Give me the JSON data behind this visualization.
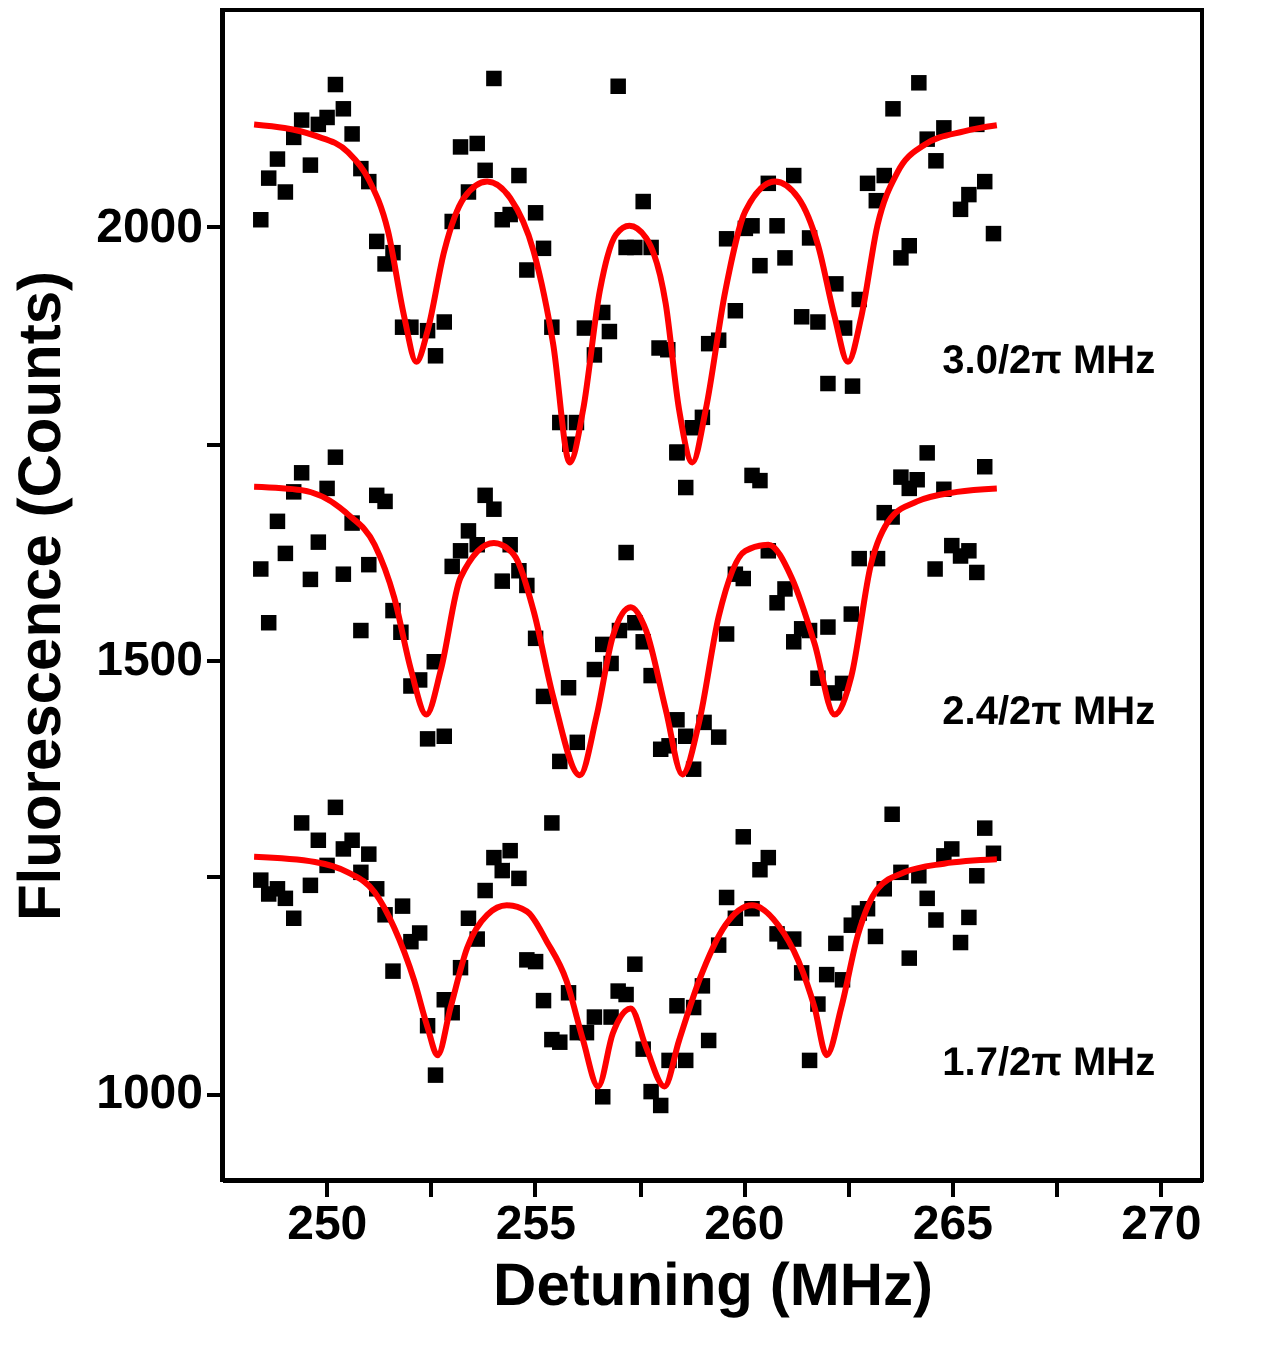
{
  "chart_data": {
    "type": "scatter",
    "xlabel": "Detuning (MHz)",
    "ylabel": "Fluorescence (Counts)",
    "xlim": [
      247.5,
      271
    ],
    "ylim": [
      900,
      2250
    ],
    "xticks": [
      250,
      {
        "value": 252.5,
        "label": null
      },
      255,
      {
        "value": 257.5,
        "label": null
      },
      260,
      {
        "value": 262.5,
        "label": null
      },
      265,
      {
        "value": 267.5,
        "label": null
      },
      270
    ],
    "yticks": [
      1000,
      {
        "value": 1250,
        "label": null
      },
      1500,
      {
        "value": 1750,
        "label": null
      },
      2000
    ],
    "grid": false,
    "marker": "square",
    "annotations": [
      "3.0/2π MHz",
      "2.4/2π MHz",
      "1.7/2π MHz"
    ],
    "series": [
      {
        "color": "#000000",
        "x": [
          248.43,
          248.62,
          248.83,
          249.02,
          249.22,
          249.41,
          249.62,
          249.81,
          250.02,
          250.22,
          250.41,
          250.62,
          250.83,
          251.02,
          251.21,
          251.41,
          251.6,
          251.83,
          252.03,
          252.43,
          252.62,
          252.83,
          253.02,
          253.22,
          253.41,
          253.62,
          253.81,
          254.02,
          254.22,
          254.41,
          254.62,
          254.81,
          255.02,
          255.21,
          255.41,
          255.6,
          256.0,
          255.84,
          256.19,
          256.43,
          256.63,
          256.79,
          257.0,
          257.19,
          257.4,
          257.6,
          257.79,
          257.98,
          258.19,
          258.41,
          258.78,
          259.02,
          259.17,
          259.41,
          259.81,
          259.6,
          260.05,
          260.21,
          260.4,
          260.6,
          260.81,
          261.0,
          261.21,
          261.4,
          261.59,
          261.79,
          262.03,
          262.22,
          262.43,
          262.62,
          262.78,
          262.98,
          263.19,
          263.38,
          263.78,
          263.98,
          263.59,
          264.21,
          264.41,
          264.62,
          264.81,
          265.21,
          265.41,
          265.6,
          265.79,
          266.0
        ],
        "values": [
          2008,
          2056,
          2078,
          2040,
          2103,
          2123,
          2071,
          2118,
          2126,
          2164,
          2136,
          2107,
          2067,
          2052,
          1983,
          1957,
          1970,
          1884,
          1884,
          1880,
          1851,
          1890,
          2006,
          2092,
          2040,
          2096,
          2065,
          2171,
          2008,
          2014,
          2059,
          1950,
          2016,
          1975,
          1884,
          1774,
          1774,
          1749,
          1883,
          1852,
          1901,
          1879,
          2162,
          1976,
          1976,
          2029,
          1976,
          1860,
          1858,
          1739,
          1768,
          1780,
          1865,
          1869,
          1903,
          1986,
          1998,
          2001,
          1955,
          2050,
          2001,
          1964,
          2059,
          1896,
          1987,
          1890,
          1819,
          1934,
          1883,
          1816,
          1916,
          2050,
          2030,
          2059,
          1964,
          1978,
          2136,
          2166,
          2101,
          2076,
          2114,
          2020,
          2037,
          2118,
          2052,
          1992
        ]
      },
      {
        "type": "line",
        "marker": "none",
        "line_style": "solid",
        "color": "#ff0000",
        "x": [
          248.27,
          249.73,
          250.52,
          251.0,
          251.48,
          251.87,
          252.16,
          252.43,
          252.83,
          253.3,
          253.86,
          254.41,
          254.97,
          255.44,
          255.84,
          256.16,
          256.56,
          256.95,
          257.27,
          257.67,
          258.14,
          258.46,
          258.78,
          259.1,
          259.57,
          260.05,
          260.76,
          261.32,
          261.79,
          262.19,
          262.51,
          262.83,
          263.22,
          263.7,
          264.33,
          265.29,
          266.08
        ],
        "values": [
          2118,
          2105,
          2086,
          2056,
          1995,
          1896,
          1844,
          1880,
          1972,
          2033,
          2052,
          2033,
          1972,
          1865,
          1728,
          1789,
          1926,
          1991,
          2001,
          1987,
          1911,
          1789,
          1728,
          1789,
          1926,
          2018,
          2052,
          2033,
          1979,
          1896,
          1844,
          1896,
          2002,
          2063,
          2094,
          2110,
          2117
        ]
      },
      {
        "color": "#000000",
        "x": [
          248.43,
          248.62,
          248.83,
          249.02,
          249.22,
          249.41,
          249.62,
          249.81,
          250.02,
          250.22,
          250.41,
          250.62,
          250.83,
          251.02,
          251.21,
          251.41,
          251.6,
          251.79,
          252.03,
          252.24,
          252.43,
          252.59,
          252.83,
          253.02,
          253.22,
          253.41,
          253.62,
          253.81,
          254.02,
          254.22,
          254.41,
          254.62,
          254.81,
          255.02,
          255.21,
          255.6,
          255.81,
          256.02,
          256.43,
          256.63,
          256.83,
          257.03,
          257.19,
          257.4,
          257.6,
          257.79,
          258.02,
          258.22,
          258.41,
          258.41,
          258.62,
          258.62,
          258.81,
          259.06,
          259.41,
          259.6,
          259.81,
          260.0,
          260.21,
          260.4,
          260.6,
          260.81,
          261.0,
          261.21,
          261.4,
          261.59,
          261.79,
          262.03,
          262.19,
          262.38,
          262.59,
          262.78,
          263.22,
          263.38,
          263.57,
          263.78,
          263.98,
          264.17,
          264.41,
          264.6,
          264.81,
          265.0,
          265.21,
          265.41,
          265.6,
          265.79
        ],
        "values": [
          1605,
          1543,
          1660,
          1623,
          1694,
          1716,
          1593,
          1636,
          1698,
          1734,
          1599,
          1658,
          1534,
          1610,
          1690,
          1683,
          1557,
          1532,
          1470,
          1477,
          1409,
          1498,
          1412,
          1608,
          1626,
          1649,
          1633,
          1690,
          1674,
          1591,
          1633,
          1603,
          1586,
          1525,
          1458,
          1383,
          1468,
          1405,
          1489,
          1518,
          1496,
          1534,
          1624,
          1543,
          1521,
          1482,
          1397,
          1401,
          1431,
          1740,
          1699,
          1412,
          1374,
          1428,
          1411,
          1530,
          1599,
          1594,
          1713,
          1707,
          1626,
          1566,
          1582,
          1521,
          1536,
          1534,
          1479,
          1538,
          1462,
          1473,
          1553,
          1617,
          1617,
          1670,
          1665,
          1711,
          1698,
          1708,
          1739,
          1605,
          1697,
          1632,
          1620,
          1626,
          1601,
          1723
        ]
      },
      {
        "type": "line",
        "marker": "none",
        "line_style": "solid",
        "color": "#ff0000",
        "x": [
          248.27,
          249.41,
          250.52,
          251.16,
          251.63,
          252.03,
          252.4,
          252.75,
          253.22,
          254.02,
          254.49,
          254.97,
          255.44,
          256.08,
          256.48,
          256.87,
          257.3,
          257.67,
          258.14,
          258.54,
          258.94,
          259.41,
          260.05,
          260.6,
          261.16,
          261.71,
          262.19,
          262.59,
          263.06,
          263.54,
          264.17,
          265.13,
          266.08
        ],
        "values": [
          1700,
          1696,
          1668,
          1633,
          1572,
          1489,
          1437,
          1489,
          1595,
          1635,
          1622,
          1557,
          1458,
          1367,
          1435,
          1527,
          1561,
          1534,
          1443,
          1368,
          1428,
          1550,
          1626,
          1633,
          1595,
          1519,
          1437,
          1481,
          1610,
          1664,
          1683,
          1694,
          1698
        ]
      },
      {
        "color": "#000000",
        "x": [
          248.43,
          248.62,
          248.83,
          249.02,
          249.22,
          249.41,
          249.62,
          249.81,
          250.02,
          250.22,
          250.41,
          250.62,
          250.83,
          251.02,
          251.21,
          251.41,
          251.6,
          251.83,
          252.03,
          252.24,
          252.43,
          252.62,
          252.83,
          253.02,
          253.22,
          253.41,
          253.62,
          253.81,
          254.02,
          254.22,
          254.41,
          254.62,
          254.81,
          255.02,
          255.21,
          255.41,
          255.41,
          255.6,
          255.81,
          256.02,
          256.24,
          256.43,
          256.63,
          256.83,
          257.0,
          257.19,
          257.4,
          257.6,
          257.79,
          258.02,
          258.22,
          258.41,
          258.62,
          258.81,
          259.02,
          259.17,
          259.41,
          259.6,
          259.81,
          260.0,
          260.21,
          260.4,
          260.6,
          260.81,
          261.0,
          261.21,
          261.4,
          261.59,
          261.79,
          262.0,
          262.22,
          262.38,
          262.59,
          262.78,
          262.98,
          263.17,
          263.38,
          263.57,
          263.78,
          263.98,
          264.21,
          264.41,
          264.62,
          264.81,
          265.0,
          265.21,
          265.41,
          265.6,
          265.79,
          266.0
        ],
        "values": [
          1246,
          1230,
          1236,
          1225,
          1202,
          1312,
          1240,
          1292,
          1263,
          1330,
          1282,
          1292,
          1255,
          1276,
          1236,
          1206,
          1141,
          1216,
          1175,
          1185,
          1078,
          1021,
          1108,
          1093,
          1145,
          1202,
          1178,
          1234,
          1272,
          1257,
          1280,
          1248,
          1154,
          1152,
          1107,
          1312,
          1062,
          1059,
          1116,
          1070,
          1070,
          1088,
          996,
          1088,
          1118,
          1114,
          1149,
          1051,
          1002,
          986,
          1038,
          1101,
          1038,
          1099,
          1124,
          1061,
          1171,
          1226,
          1202,
          1296,
          1213,
          1258,
          1272,
          1184,
          1175,
          1178,
          1139,
          1038,
          1103,
          1137,
          1173,
          1131,
          1194,
          1208,
          1213,
          1181,
          1236,
          1322,
          1255,
          1156,
          1251,
          1225,
          1200,
          1274,
          1282,
          1174,
          1203,
          1251,
          1306,
          1277
        ]
      },
      {
        "type": "line",
        "marker": "none",
        "line_style": "solid",
        "color": "#ff0000",
        "x": [
          248.27,
          249.73,
          250.52,
          251.16,
          251.63,
          252.11,
          252.43,
          252.67,
          252.98,
          253.38,
          253.86,
          254.33,
          254.81,
          255.29,
          255.76,
          256.16,
          256.52,
          256.87,
          257.3,
          257.67,
          258.11,
          258.46,
          258.94,
          259.57,
          260.21,
          260.84,
          261.32,
          261.71,
          262.0,
          262.35,
          262.75,
          263.22,
          263.86,
          264.81,
          266.08
        ],
        "values": [
          1273,
          1267,
          1255,
          1232,
          1191,
          1130,
          1076,
          1044,
          1099,
          1168,
          1206,
          1217,
          1210,
          1175,
          1130,
          1061,
          1008,
          1069,
          1098,
          1053,
          1008,
          1061,
          1130,
          1194,
          1217,
          1194,
          1153,
          1099,
          1044,
          1099,
          1183,
          1236,
          1255,
          1265,
          1270
        ]
      }
    ]
  }
}
